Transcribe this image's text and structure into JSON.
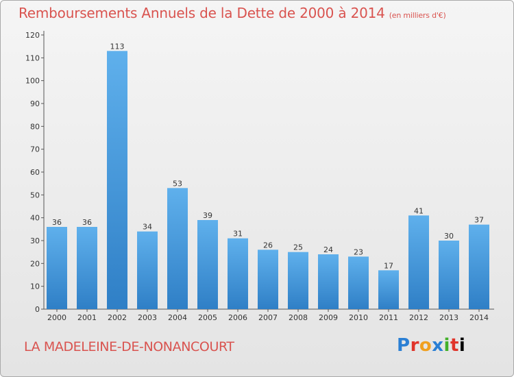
{
  "header": {
    "title": "Remboursements Annuels de la Dette de 2000 à 2014",
    "subtitle": "(en milliers d'€)"
  },
  "footer": {
    "commune": "LA MADELEINE-DE-NONANCOURT",
    "logo_letters": [
      "P",
      "r",
      "o",
      "x",
      "i",
      "t",
      "i"
    ]
  },
  "chart_data": {
    "type": "bar",
    "title": "Remboursements Annuels de la Dette de 2000 à 2014",
    "subtitle": "(en milliers d'€)",
    "categories": [
      "2000",
      "2001",
      "2002",
      "2003",
      "2004",
      "2005",
      "2006",
      "2007",
      "2008",
      "2009",
      "2010",
      "2011",
      "2012",
      "2013",
      "2014"
    ],
    "values": [
      36,
      36,
      113,
      34,
      53,
      39,
      31,
      26,
      25,
      24,
      23,
      17,
      41,
      30,
      37
    ],
    "ylim": [
      0,
      120
    ],
    "yticks": [
      0,
      10,
      20,
      30,
      40,
      50,
      60,
      70,
      80,
      90,
      100,
      110,
      120
    ],
    "grid": false,
    "legend": "none",
    "colors": {
      "bar_light": "#5fb0ec",
      "bar_dark": "#2f7fc6",
      "accent": "#d9534f"
    }
  }
}
